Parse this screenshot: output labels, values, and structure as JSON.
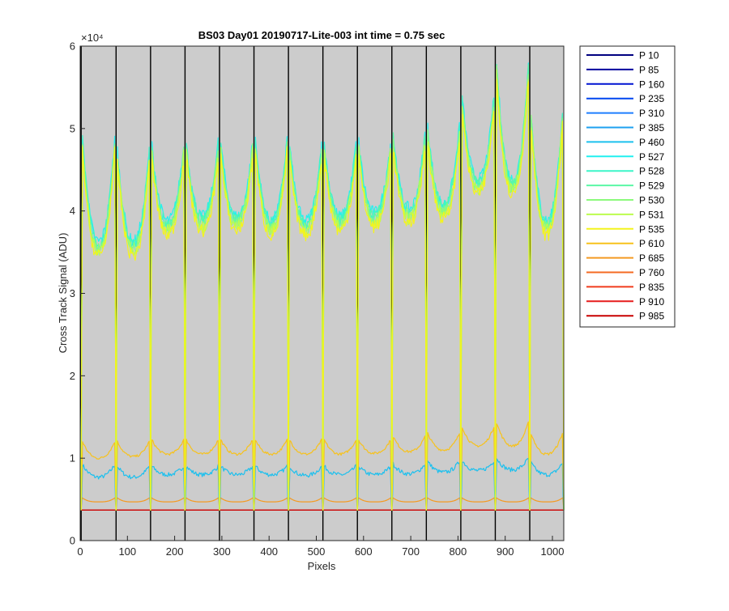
{
  "chart_data": {
    "type": "line",
    "title": "BS03 Day01 20190717-Lite-003 int time = 0.75 sec",
    "xlabel": "Pixels",
    "ylabel": "Cross Track Signal (ADU)",
    "y_exponent_label": "×10⁴",
    "xlim": [
      0,
      1024
    ],
    "ylim": [
      0,
      60000
    ],
    "x_ticks": [
      0,
      100,
      200,
      300,
      400,
      500,
      600,
      700,
      800,
      900,
      1000
    ],
    "x_tick_labels": [
      "0",
      "100",
      "200",
      "300",
      "400",
      "500",
      "600",
      "700",
      "800",
      "900",
      "1000"
    ],
    "y_ticks": [
      0,
      10000,
      20000,
      30000,
      40000,
      50000,
      60000
    ],
    "y_tick_labels": [
      "0",
      "1",
      "2",
      "3",
      "4",
      "5",
      "6"
    ],
    "grid": false,
    "plot_background": "#cccccc",
    "legend_position": "outside-right",
    "segment_boundaries": [
      2,
      76,
      149,
      222,
      295,
      368,
      441,
      514,
      587,
      660,
      733,
      806,
      879,
      952
    ],
    "dark_level": 3700,
    "high_group": {
      "series": [
        "P 527",
        "P 528",
        "P 529",
        "P 530",
        "P 531",
        "P 535"
      ],
      "segment_peaks": [
        48000,
        46500,
        47000,
        47500,
        47500,
        48000,
        47000,
        47500,
        47500,
        48500,
        49500,
        53000,
        57000,
        51000,
        46000
      ],
      "segment_dips": [
        35500,
        35500,
        38000,
        38500,
        38500,
        38000,
        38000,
        38500,
        39000,
        39500,
        40000,
        43000,
        43000,
        38000,
        37000
      ]
    },
    "mid_group": {
      "series": [
        "P 460"
      ],
      "segment_peaks": [
        9200,
        9000,
        9000,
        9000,
        9000,
        9000,
        9000,
        9000,
        9000,
        9300,
        9600,
        9700,
        10000,
        9400,
        9200
      ],
      "segment_dips": [
        7700,
        7700,
        8000,
        8000,
        8000,
        8000,
        7900,
        8000,
        8000,
        8100,
        8300,
        8500,
        8600,
        8000,
        7900
      ]
    },
    "upper_mid_group": {
      "series": [
        "P 610"
      ],
      "segment_peaks": [
        12000,
        12000,
        12200,
        12200,
        12200,
        12200,
        12200,
        12200,
        12200,
        12600,
        13000,
        13800,
        14300,
        13000,
        12200
      ],
      "segment_dips": [
        10000,
        10200,
        10500,
        10500,
        10500,
        10500,
        10500,
        10500,
        10600,
        10800,
        11000,
        11500,
        11500,
        10500,
        10200
      ]
    },
    "low_group": {
      "series": [
        "P 685"
      ],
      "level": 4700,
      "peak": 5200
    },
    "series": [
      {
        "name": "P 10",
        "color": "#000080"
      },
      {
        "name": "P 85",
        "color": "#00009e"
      },
      {
        "name": "P 160",
        "color": "#0014d2"
      },
      {
        "name": "P 235",
        "color": "#0046f0"
      },
      {
        "name": "P 310",
        "color": "#1e7eff"
      },
      {
        "name": "P 385",
        "color": "#1ea0f0"
      },
      {
        "name": "P 460",
        "color": "#1cc0ee"
      },
      {
        "name": "P 527",
        "color": "#22f0f0"
      },
      {
        "name": "P 528",
        "color": "#3cf5c8"
      },
      {
        "name": "P 529",
        "color": "#5cf7a6"
      },
      {
        "name": "P 530",
        "color": "#8cfa7c"
      },
      {
        "name": "P 531",
        "color": "#bcfc4e"
      },
      {
        "name": "P 535",
        "color": "#f4f41c"
      },
      {
        "name": "P 610",
        "color": "#f7c21c"
      },
      {
        "name": "P 685",
        "color": "#f49a22"
      },
      {
        "name": "P 760",
        "color": "#f46a22"
      },
      {
        "name": "P 835",
        "color": "#f03c1e"
      },
      {
        "name": "P 910",
        "color": "#e61c1c"
      },
      {
        "name": "P 985",
        "color": "#c80000"
      }
    ]
  }
}
